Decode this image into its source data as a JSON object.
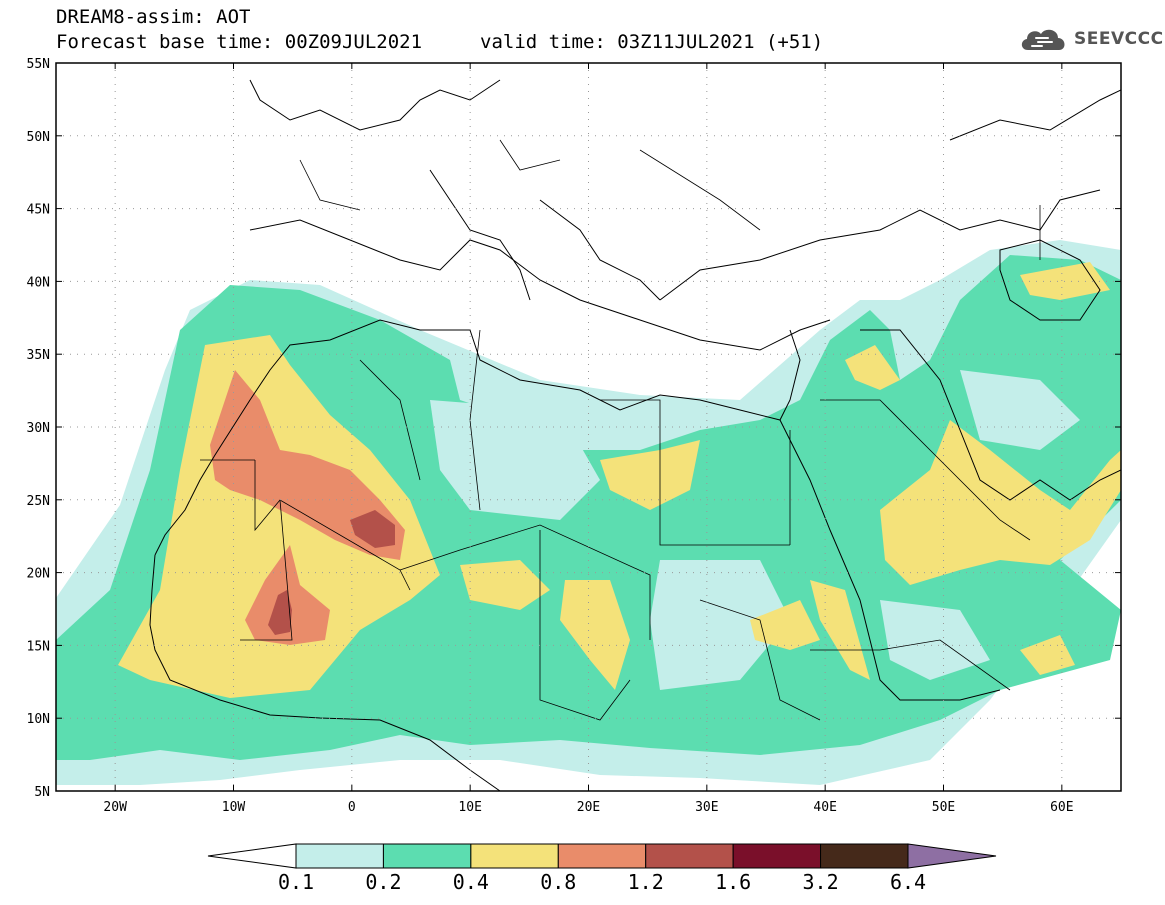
{
  "header": {
    "title": "DREAM8-assim: AOT",
    "base_time": "Forecast base time: 00Z09JUL2021",
    "valid_time": "valid time: 03Z11JUL2021 (+51)"
  },
  "logo": {
    "text": "SEEVCCC",
    "icon": "cloud-icon"
  },
  "map": {
    "lat_labels": [
      "55N",
      "50N",
      "45N",
      "40N",
      "35N",
      "30N",
      "25N",
      "20N",
      "15N",
      "10N",
      "5N"
    ],
    "lon_labels": [
      "20W",
      "10W",
      "0",
      "10E",
      "20E",
      "30E",
      "40E",
      "50E",
      "60E"
    ],
    "extent": {
      "lon": [
        -25,
        65
      ],
      "lat": [
        5,
        55
      ]
    },
    "gridlines": "dotted"
  },
  "legend": {
    "labels": [
      "0.1",
      "0.2",
      "0.4",
      "0.8",
      "1.2",
      "1.6",
      "3.2",
      "6.4"
    ],
    "colors": [
      "#ffffff",
      "#c4eeea",
      "#5cddb0",
      "#f4e27a",
      "#e98c6a",
      "#b3514a",
      "#7a0f2a",
      "#45291a",
      "#8e6fa3"
    ]
  }
}
